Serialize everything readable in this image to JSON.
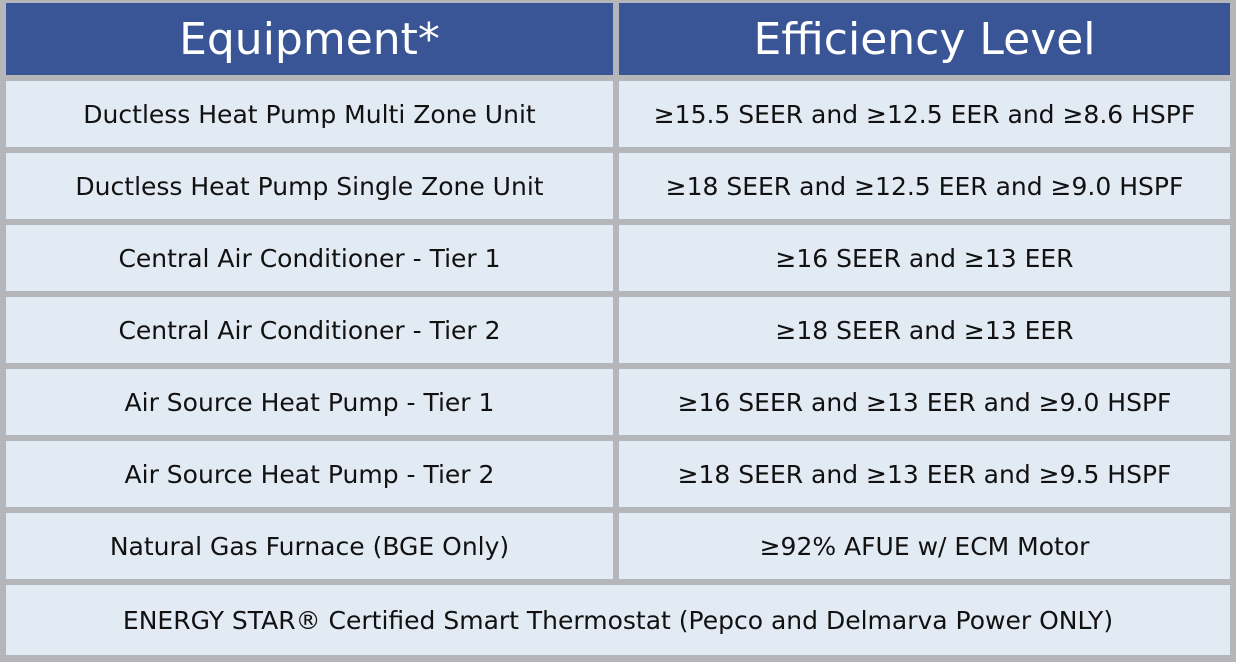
{
  "table": {
    "header": [
      "Equipment*",
      "Efficiency Level"
    ],
    "rows": [
      [
        "Ductless Heat Pump Multi Zone Unit",
        "≥15.5 SEER and ≥12.5 EER and ≥8.6 HSPF"
      ],
      [
        "Ductless Heat Pump Single Zone Unit",
        "≥18 SEER and ≥12.5 EER and ≥9.0 HSPF"
      ],
      [
        "Central Air Conditioner - Tier 1",
        "≥16 SEER and ≥13 EER"
      ],
      [
        "Central Air Conditioner - Tier 2",
        "≥18 SEER and ≥13 EER"
      ],
      [
        "Air Source Heat Pump - Tier 1",
        "≥16 SEER and ≥13 EER and ≥9.0 HSPF"
      ],
      [
        "Air Source Heat Pump - Tier 2",
        "≥18 SEER and ≥13 EER and ≥9.5 HSPF"
      ],
      [
        "Natural Gas Furnace (BGE Only)",
        "≥92% AFUE w/ ECM Motor"
      ]
    ],
    "footer": "ENERGY STAR® Certified Smart Thermostat (Pepco and Delmarva Power ONLY)"
  }
}
